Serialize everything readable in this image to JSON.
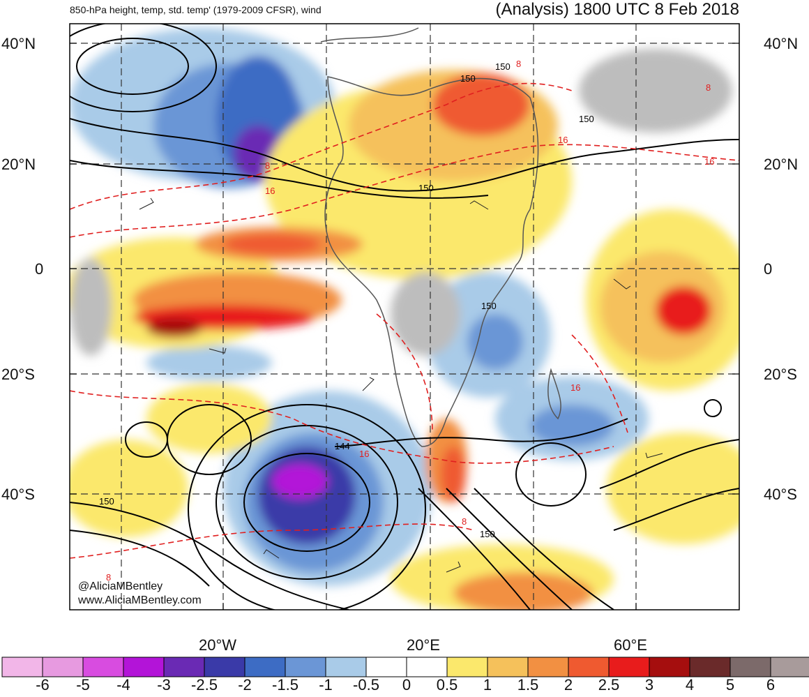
{
  "header": {
    "left_title": "850-hPa height, temp, std. temp' (1979-2009 CFSR), wind",
    "right_title": "(Analysis) 1800 UTC 8 Feb 2018"
  },
  "map": {
    "lat_labels": [
      "40°N",
      "20°N",
      "0",
      "20°S",
      "40°S"
    ],
    "lon_labels": [
      "20°W",
      "20°E",
      "60°E"
    ],
    "contour_labels": [
      "150",
      "150",
      "150",
      "150",
      "150",
      "144",
      "150",
      "150",
      "16",
      "16",
      "16",
      "16",
      "16",
      "8",
      "8",
      "8",
      "8",
      "8"
    ],
    "credits": [
      "@AliciaMBentley",
      "www.AliciaMBentley.com"
    ]
  },
  "colorbar": {
    "labels": [
      "-6",
      "-5",
      "-4",
      "-3",
      "-2.5",
      "-2",
      "-1.5",
      "-1",
      "-0.5",
      "0",
      "0.5",
      "1",
      "1.5",
      "2",
      "2.5",
      "3",
      "4",
      "5",
      "6"
    ],
    "colors": [
      "#f2b6e8",
      "#e79ae0",
      "#d84ce0",
      "#b314d8",
      "#6a2ab4",
      "#3a3aa8",
      "#3d6cc4",
      "#6b96d6",
      "#a9cbe8",
      "#ffffff",
      "#ffffff",
      "#fbe86c",
      "#f5c15b",
      "#f29042",
      "#ef5a30",
      "#e81c1c",
      "#a50e0e",
      "#6a2a2a",
      "#7c6a6a",
      "#a89b9b"
    ]
  },
  "colors": {
    "height_contour": "#000000",
    "temp_contour": "#e01f1f",
    "graticule": "#333333",
    "land_gray": "#bdbdbd"
  }
}
